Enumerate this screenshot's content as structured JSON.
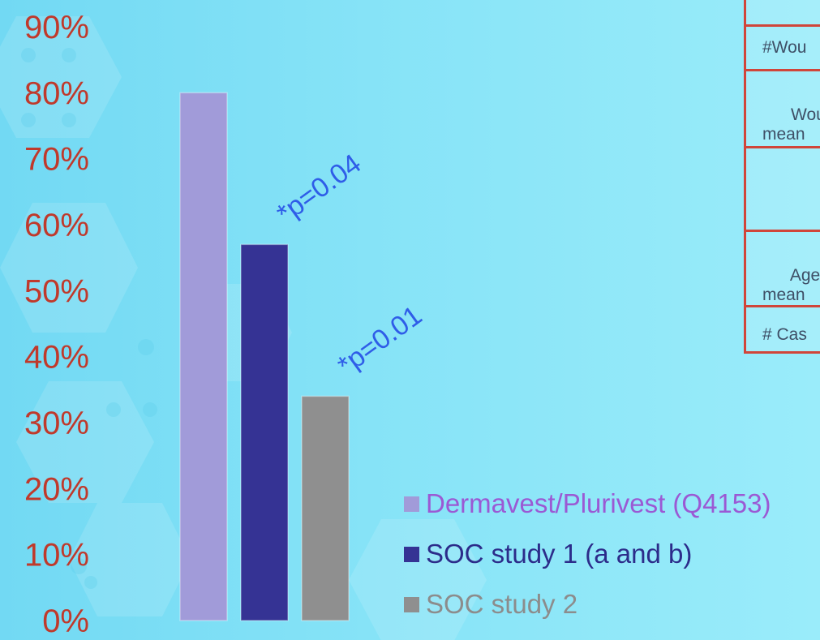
{
  "chart_data": {
    "type": "bar",
    "categories": [
      "Dermavest/Plurivest (Q4153)",
      "SOC study 1 (a and b)",
      "SOC study 2"
    ],
    "values": [
      80,
      57,
      34
    ],
    "colors": [
      "#a19bd9",
      "#353394",
      "#8f8f8f"
    ],
    "y_ticks": [
      "0%",
      "10%",
      "20%",
      "30%",
      "40%",
      "50%",
      "60%",
      "70%",
      "80%",
      "90%"
    ],
    "ylim": [
      0,
      90
    ],
    "annotations": [
      {
        "text": "*p=0.04",
        "bar_index": 1
      },
      {
        "text": "*p=0.01",
        "bar_index": 2
      }
    ],
    "legend": {
      "position": "bottom-right",
      "items": [
        {
          "label": "Dermavest/Plurivest (Q4153)",
          "color": "#a19bd9",
          "text_color": "#9b59d4"
        },
        {
          "label": "SOC study 1 (a and b)",
          "color": "#353394",
          "text_color": "#2c2c8a"
        },
        {
          "label": "SOC study 2",
          "color": "#8f8f8f",
          "text_color": "#8c8c8c"
        }
      ]
    },
    "grid": false
  },
  "side_table": {
    "rows": [
      "",
      "#Wou",
      "Wour\nmean",
      "",
      "Age\nmean",
      "# Cas"
    ]
  }
}
